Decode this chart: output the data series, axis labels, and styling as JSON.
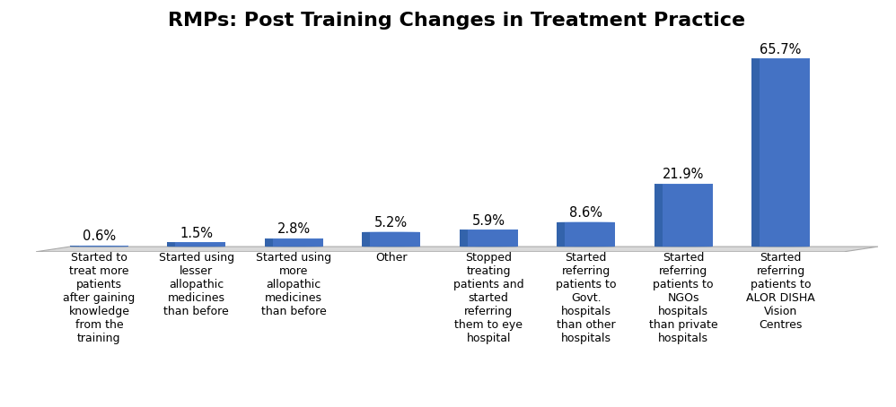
{
  "title": "RMPs: Post Training Changes in Treatment Practice",
  "categories": [
    "Started to\ntreat more\npatients\nafter gaining\nknowledge\nfrom the\ntraining",
    "Started using\nlesser\nallopathic\nmedicines\nthan before",
    "Started using\nmore\nallopathic\nmedicines\nthan before",
    "Other",
    "Stopped\ntreating\npatients and\nstarted\nreferring\nthem to eye\nhospital",
    "Started\nreferring\npatients to\nGovt.\nhospitals\nthan other\nhospitals",
    "Started\nreferring\npatients to\nNGOs\nhospitals\nthan private\nhospitals",
    "Started\nreferring\npatients to\nALOR DISHA\nVision\nCentres"
  ],
  "values": [
    0.6,
    1.5,
    2.8,
    5.2,
    5.9,
    8.6,
    21.9,
    65.7
  ],
  "labels": [
    "0.6%",
    "1.5%",
    "2.8%",
    "5.2%",
    "5.9%",
    "8.6%",
    "21.9%",
    "65.7%"
  ],
  "bar_color_body": "#4472C4",
  "bar_color_dark": "#2E5FA3",
  "bar_color_top": "#5B8DD9",
  "ground_color": "#D9D9D9",
  "ground_edge": "#AAAAAA",
  "background_color": "#FFFFFF",
  "title_fontsize": 16,
  "label_fontsize": 10.5,
  "tick_fontsize": 9,
  "ylim_max": 72
}
